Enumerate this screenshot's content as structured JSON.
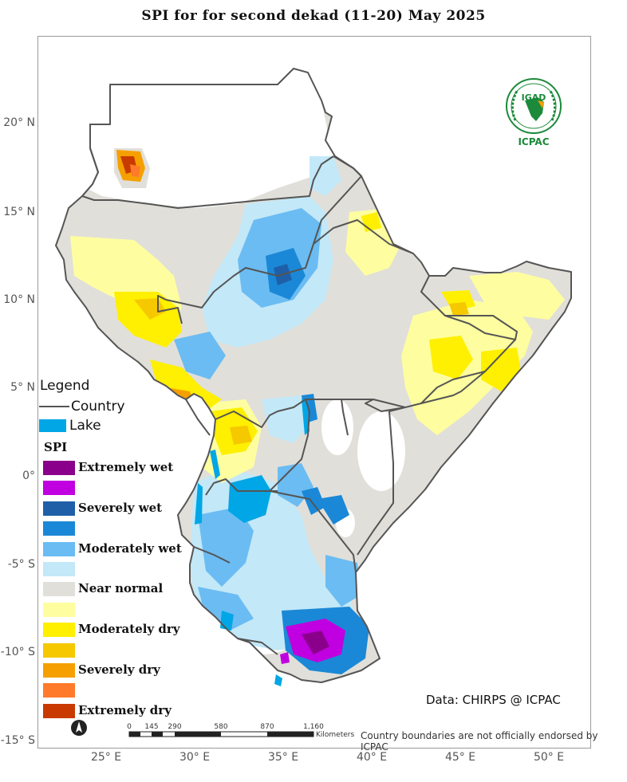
{
  "title": "SPI  for   for   second dekad (11-20)  May 2025",
  "axes": {
    "lat_labels": [
      "20° N",
      "15° N",
      "10° N",
      "5° N",
      "0°",
      "-5° S",
      "-10° S",
      "-15° S"
    ],
    "lon_labels": [
      "25° E",
      "30° E",
      "35° E",
      "40° E",
      "45° E",
      "50° E"
    ]
  },
  "legend": {
    "title": "Legend",
    "country_label": "Country",
    "lake_label": "Lake",
    "spi_title": "SPI",
    "classes": [
      {
        "label": "Extremely wet",
        "color": "#8b008b"
      },
      {
        "label": "",
        "color": "#c000e0"
      },
      {
        "label": "Severely wet",
        "color": "#1f5fa8"
      },
      {
        "label": "",
        "color": "#1a88d6"
      },
      {
        "label": "Moderately wet",
        "color": "#6bbcf2"
      },
      {
        "label": "",
        "color": "#c3e8f8"
      },
      {
        "label": "Near normal",
        "color": "#e1dfd9"
      },
      {
        "label": "",
        "color": "#fefea0"
      },
      {
        "label": "Moderately dry",
        "color": "#ffef00"
      },
      {
        "label": "",
        "color": "#f5c800"
      },
      {
        "label": "Severely dry",
        "color": "#f5a000"
      },
      {
        "label": "",
        "color": "#ff7a2a"
      },
      {
        "label": "Extremely dry",
        "color": "#c83a00"
      }
    ],
    "country_line_color": "#555555",
    "lake_color": "#00a6e6"
  },
  "scalebar": {
    "ticks": [
      "0",
      "145",
      "290",
      "580",
      "870",
      "1,160"
    ],
    "unit": "Kilometers"
  },
  "credit": "Data: CHIRPS @ ICPAC",
  "disclaimer": "Country boundaries are not officially endorsed by ICPAC",
  "logo": {
    "top_text": "IGAD",
    "bottom_text": "ICPAC",
    "color": "#1b8a3a",
    "accent": "#f2a000"
  }
}
